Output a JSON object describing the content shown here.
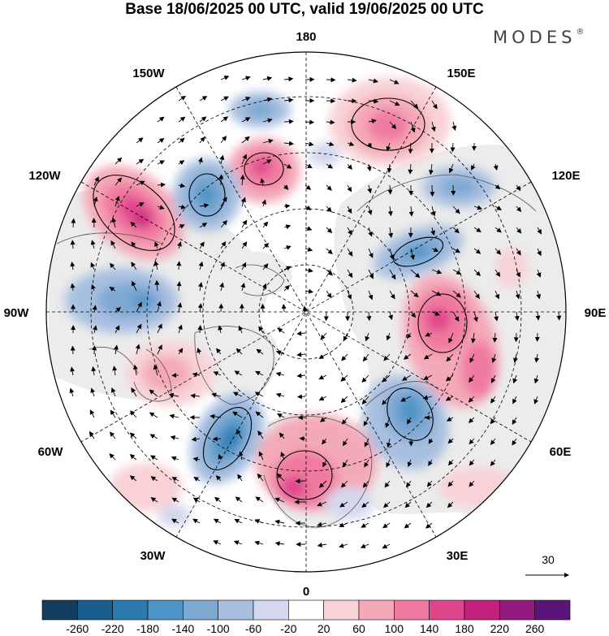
{
  "title": "Base 18/06/2025 00 UTC, valid 19/06/2025 00 UTC",
  "logo_text": "MODES",
  "longitude_labels": {
    "top": "180",
    "top_left": "150W",
    "top_right": "150E",
    "upper_left": "120W",
    "upper_right": "120E",
    "left": "90W",
    "right": "90E",
    "lower_left": "60W",
    "lower_right": "60E",
    "bottom_left": "30W",
    "bottom_right": "30E",
    "bottom": "0"
  },
  "vector_reference": {
    "value": "30"
  },
  "colorbar": {
    "colors": [
      "#143c5c",
      "#1b5e8e",
      "#2c7ab0",
      "#4f94c6",
      "#7ea9d3",
      "#a8bfe0",
      "#d3d8ee",
      "#ffffff",
      "#f8d2d6",
      "#f4a9b8",
      "#f07aa0",
      "#e0468d",
      "#c4207e",
      "#941a80",
      "#5c1478"
    ],
    "tick_labels": [
      "-260",
      "-220",
      "-180",
      "-140",
      "-100",
      "-60",
      "-20",
      "20",
      "60",
      "100",
      "140",
      "180",
      "220",
      "260"
    ]
  },
  "anomaly_centers": [
    {
      "sign": "positive",
      "peak": 200
    },
    {
      "sign": "positive",
      "peak": 120
    },
    {
      "sign": "positive",
      "peak": 180
    },
    {
      "sign": "positive",
      "peak": 170
    },
    {
      "sign": "positive",
      "peak": 180
    },
    {
      "sign": "positive",
      "peak": 120
    },
    {
      "sign": "negative",
      "peak": -180
    },
    {
      "sign": "negative",
      "peak": -140
    },
    {
      "sign": "negative",
      "peak": -200
    },
    {
      "sign": "negative",
      "peak": -140
    },
    {
      "sign": "negative",
      "peak": -160
    },
    {
      "sign": "negative",
      "peak": -100
    }
  ]
}
